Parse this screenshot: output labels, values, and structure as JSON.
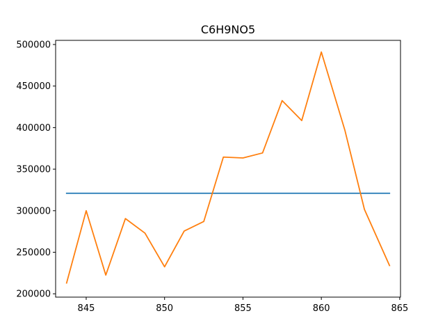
{
  "chart_data": {
    "type": "line",
    "title": "C6H9NO5",
    "xlabel": "",
    "ylabel": "",
    "xlim": [
      843.05,
      865.05
    ],
    "ylim": [
      196000,
      505000
    ],
    "xticks": [
      845,
      850,
      855,
      860,
      865
    ],
    "yticks": [
      200000,
      250000,
      300000,
      350000,
      400000,
      450000,
      500000
    ],
    "grid": false,
    "legend": "none",
    "series": [
      {
        "color": "#1f77b4",
        "x": [
          843.75,
          864.35
        ],
        "y": [
          321000,
          321000
        ]
      },
      {
        "color": "#ff7f0e",
        "x": [
          843.75,
          845.0,
          846.25,
          847.5,
          848.75,
          850.0,
          851.25,
          852.5,
          853.75,
          855.0,
          856.25,
          857.5,
          858.75,
          860.0,
          861.5,
          862.75,
          864.35
        ],
        "y": [
          213000,
          300000,
          222500,
          290500,
          273000,
          232500,
          275500,
          287000,
          364500,
          363500,
          369500,
          432500,
          408500,
          491000,
          397000,
          301500,
          234000
        ]
      }
    ]
  }
}
